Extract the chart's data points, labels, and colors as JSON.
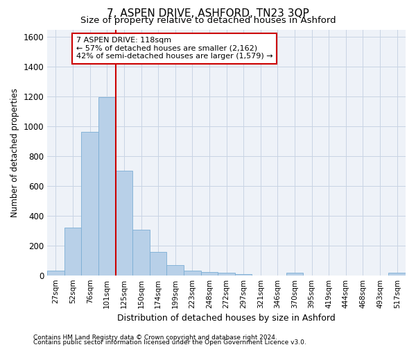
{
  "title": "7, ASPEN DRIVE, ASHFORD, TN23 3QP",
  "subtitle": "Size of property relative to detached houses in Ashford",
  "xlabel": "Distribution of detached houses by size in Ashford",
  "ylabel": "Number of detached properties",
  "footnote1": "Contains HM Land Registry data © Crown copyright and database right 2024.",
  "footnote2": "Contains public sector information licensed under the Open Government Licence v3.0.",
  "annotation_line1": "7 ASPEN DRIVE: 118sqm",
  "annotation_line2": "← 57% of detached houses are smaller (2,162)",
  "annotation_line3": "42% of semi-detached houses are larger (1,579) →",
  "bar_color": "#b8d0e8",
  "bar_edge_color": "#7aadd4",
  "grid_color": "#c8d4e4",
  "bg_color": "#eef2f8",
  "property_line_color": "#cc0000",
  "ann_edge_color": "#cc0000",
  "categories": [
    "27sqm",
    "52sqm",
    "76sqm",
    "101sqm",
    "125sqm",
    "150sqm",
    "174sqm",
    "199sqm",
    "223sqm",
    "248sqm",
    "272sqm",
    "297sqm",
    "321sqm",
    "346sqm",
    "370sqm",
    "395sqm",
    "419sqm",
    "444sqm",
    "468sqm",
    "493sqm",
    "517sqm"
  ],
  "values": [
    30,
    320,
    965,
    1195,
    700,
    305,
    155,
    70,
    30,
    20,
    15,
    10,
    0,
    0,
    15,
    0,
    0,
    0,
    0,
    0,
    15
  ],
  "ylim": [
    0,
    1650
  ],
  "red_line_bar_index": 4,
  "yticks": [
    0,
    200,
    400,
    600,
    800,
    1000,
    1200,
    1400,
    1600
  ]
}
